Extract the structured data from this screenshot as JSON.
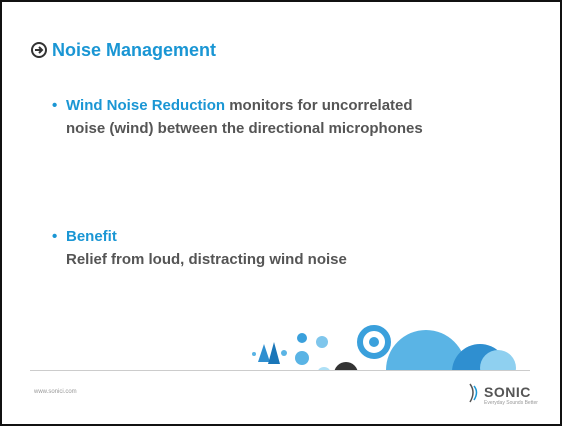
{
  "slide": {
    "title": "Noise Management",
    "bullets": [
      {
        "highlight": "Wind Noise Reduction",
        "text": "monitors for uncorrelated noise (wind) between the directional microphones"
      },
      {
        "highlight": "Benefit",
        "text": "Relief from loud, distracting wind noise"
      }
    ],
    "footer": {
      "url": "www.sonici.com",
      "logo": "SONIC",
      "tagline": "Everyday Sounds Better"
    }
  }
}
